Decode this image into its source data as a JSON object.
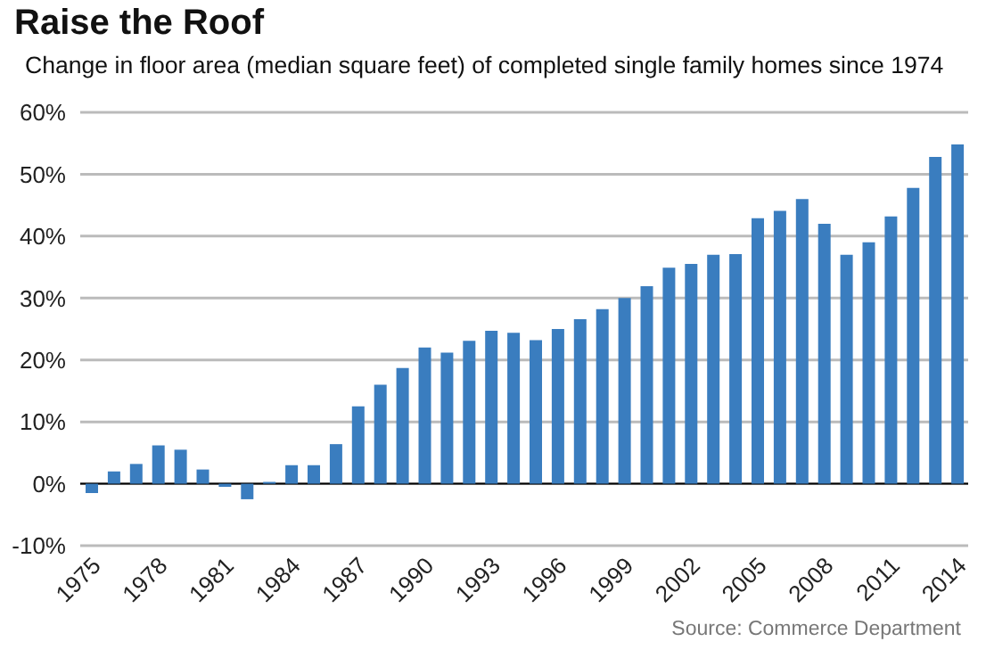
{
  "chart_data": {
    "type": "bar",
    "title": "Raise the Roof",
    "subtitle": "Change in floor area (median square feet) of completed single family homes since 1974",
    "categories": [
      "1975",
      null,
      null,
      "1978",
      null,
      null,
      "1981",
      null,
      null,
      "1984",
      null,
      null,
      "1987",
      null,
      null,
      "1990",
      null,
      null,
      "1993",
      null,
      null,
      "1996",
      null,
      null,
      "1999",
      null,
      null,
      "2002",
      null,
      null,
      "2005",
      null,
      null,
      "2008",
      null,
      null,
      "2011",
      null,
      null,
      "2014"
    ],
    "values": [
      -1.5,
      2,
      3.2,
      6.2,
      5.5,
      2.3,
      -0.5,
      -2.5,
      0.3,
      3,
      3,
      6.4,
      12.5,
      16,
      18.7,
      22,
      21.2,
      23.1,
      24.7,
      24.4,
      23.2,
      25,
      26.6,
      28.2,
      30,
      31.9,
      34.9,
      35.5,
      37,
      37.1,
      42.9,
      44.1,
      46,
      42,
      37,
      39,
      43.2,
      47.8,
      52.8,
      54.8
    ],
    "color": "#3a7dbf",
    "ylim": [
      -10,
      60
    ],
    "yticks": [
      {
        "value": -10,
        "label": "-10%"
      },
      {
        "value": 0,
        "label": "0%"
      },
      {
        "value": 10,
        "label": "10%"
      },
      {
        "value": 20,
        "label": "20%"
      },
      {
        "value": 30,
        "label": "30%"
      },
      {
        "value": 40,
        "label": "40%"
      },
      {
        "value": 50,
        "label": "50%"
      },
      {
        "value": 60,
        "label": "60%"
      }
    ],
    "grid": "y",
    "annotations": [
      "Source: Commerce Department"
    ]
  }
}
